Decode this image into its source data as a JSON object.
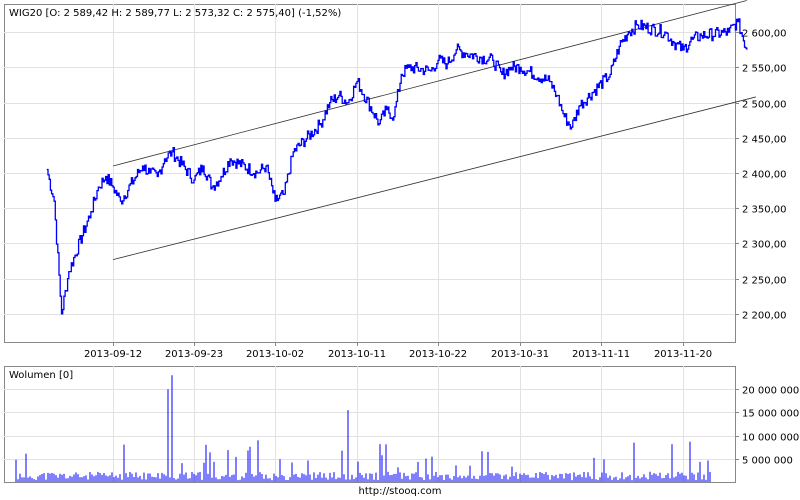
{
  "footer": "http://stooq.com",
  "chart_data": [
    {
      "type": "line",
      "legend": "WIG20 [O: 2 589,42  H: 2 589,77  L: 2 573,32  C: 2 575,40] (-1,52%)",
      "line_color": "#0000ff",
      "ylim": [
        2160,
        2640
      ],
      "y_ticks": [
        2200,
        2250,
        2300,
        2350,
        2400,
        2450,
        2500,
        2550,
        2600
      ],
      "y_tick_labels": [
        "2 200,00",
        "2 250,00",
        "2 300,00",
        "2 350,00",
        "2 400,00",
        "2 450,00",
        "2 500,00",
        "2 550,00",
        "2 600,00"
      ],
      "x_tick_labels": [
        "2013-09-12",
        "2013-09-23",
        "2013-10-02",
        "2013-10-11",
        "2013-10-22",
        "2013-10-31",
        "2013-11-11",
        "2013-11-20"
      ],
      "grid": true,
      "series": [
        {
          "x": [
            "2013-09-03",
            "2013-09-04",
            "2013-09-05",
            "2013-09-06",
            "2013-09-09",
            "2013-09-10",
            "2013-09-11",
            "2013-09-12",
            "2013-09-13",
            "2013-09-16",
            "2013-09-17",
            "2013-09-18",
            "2013-09-19",
            "2013-09-20",
            "2013-09-23",
            "2013-09-24",
            "2013-09-25",
            "2013-09-26",
            "2013-09-27",
            "2013-09-30",
            "2013-10-01",
            "2013-10-02",
            "2013-10-03",
            "2013-10-04",
            "2013-10-07",
            "2013-10-08",
            "2013-10-09",
            "2013-10-10",
            "2013-10-11",
            "2013-10-14",
            "2013-10-15",
            "2013-10-16",
            "2013-10-17",
            "2013-10-18",
            "2013-10-21",
            "2013-10-22",
            "2013-10-23",
            "2013-10-24",
            "2013-10-25",
            "2013-10-28",
            "2013-10-29",
            "2013-10-30",
            "2013-10-31",
            "2013-11-04",
            "2013-11-05",
            "2013-11-06",
            "2013-11-07",
            "2013-11-08",
            "2013-11-12",
            "2013-11-13",
            "2013-11-14",
            "2013-11-15",
            "2013-11-18",
            "2013-11-19",
            "2013-11-20",
            "2013-11-21",
            "2013-11-22",
            "2013-11-25",
            "2013-11-26",
            "2013-11-27"
          ],
          "y": [
            2405,
            2360,
            2200,
            2260,
            2345,
            2380,
            2395,
            2380,
            2360,
            2410,
            2400,
            2395,
            2420,
            2430,
            2390,
            2410,
            2380,
            2395,
            2420,
            2400,
            2410,
            2360,
            2370,
            2430,
            2470,
            2500,
            2510,
            2500,
            2530,
            2470,
            2490,
            2480,
            2540,
            2550,
            2545,
            2560,
            2555,
            2575,
            2570,
            2560,
            2540,
            2550,
            2550,
            2530,
            2510,
            2480,
            2465,
            2495,
            2540,
            2580,
            2600,
            2610,
            2600,
            2585,
            2575,
            2590,
            2595,
            2600,
            2615,
            2575
          ]
        }
      ],
      "channel": {
        "upper": {
          "from": [
            "2013-09-12",
            2410
          ],
          "to": [
            "2013-11-27",
            2645
          ]
        },
        "lower": {
          "from": [
            "2013-09-12",
            2277
          ],
          "to": [
            "2013-11-28",
            2508
          ]
        }
      }
    },
    {
      "type": "bar",
      "legend": "Wolumen [0]",
      "bar_color": "#0000ff",
      "ylim": [
        0,
        25000000
      ],
      "y_ticks": [
        5000000,
        10000000,
        15000000,
        20000000
      ],
      "y_tick_labels": [
        "5 000 000",
        "10 000 000",
        "15 000 000",
        "20 000 000"
      ],
      "grid": true,
      "peak_labels": [
        "2013-09-20",
        "2013-10-11"
      ]
    }
  ]
}
